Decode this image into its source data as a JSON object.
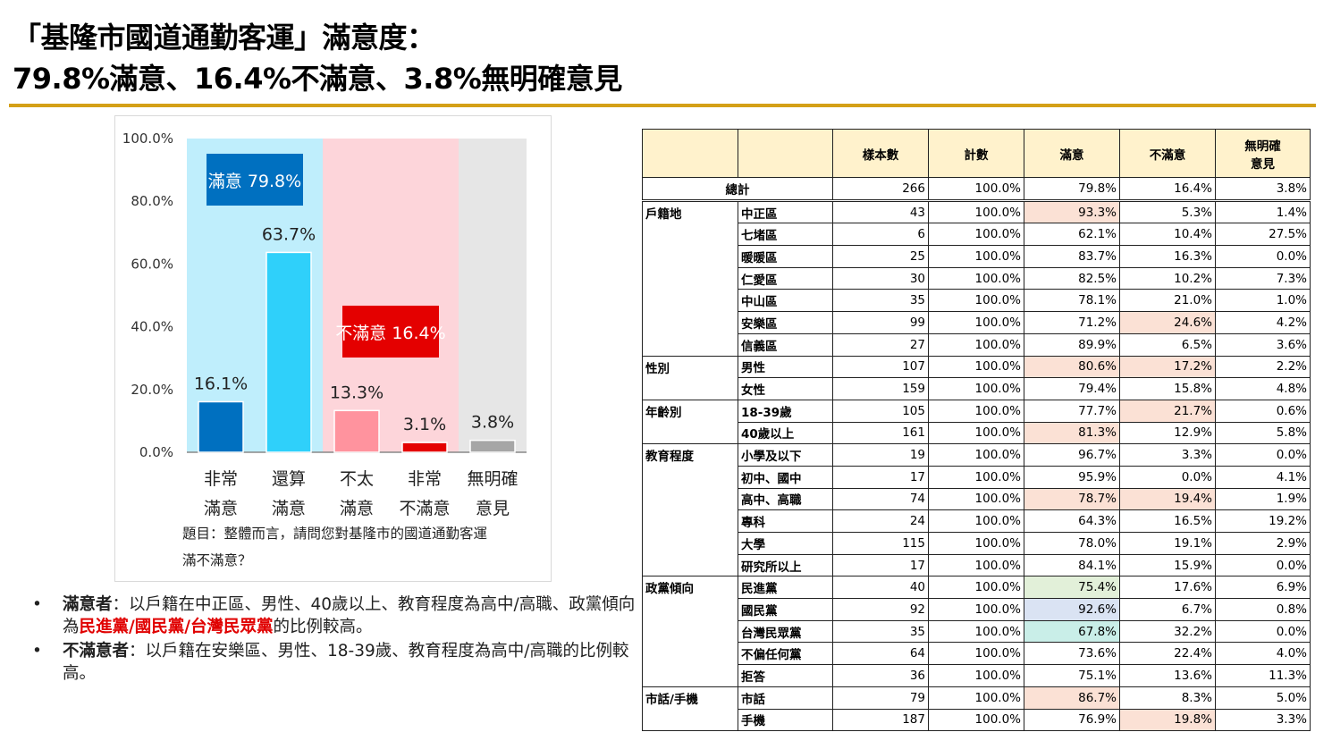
{
  "title": {
    "line1": "「基隆市國道通勤客運」滿意度：",
    "line2": "79.8%滿意、16.4%不滿意、3.8%無明確意見"
  },
  "colors": {
    "accent_rule": "#d4a017",
    "satisfied_bg": "#bfeefc",
    "unsatisfied_bg": "#fdd5da",
    "noopinion_bg": "#e6e6e6",
    "bar_very_satisfied": "#0070c0",
    "bar_satisfied": "#2fd0fa",
    "bar_unsatisfied": "#ff939e",
    "bar_very_unsatisfied": "#e40000",
    "bar_no_opinion": "#a6a6a6",
    "hl_orange": "#fbe1d5",
    "hl_green": "#e2f0d9",
    "hl_blue": "#dae3f3",
    "hl_teal": "#c9eee8"
  },
  "chart_data": {
    "type": "bar",
    "categories": [
      "非常\n滿意",
      "還算\n滿意",
      "不太\n滿意",
      "非常\n不滿意",
      "無明確\n意見"
    ],
    "values": [
      16.1,
      63.7,
      13.3,
      3.1,
      3.8
    ],
    "value_labels": [
      "16.1%",
      "63.7%",
      "13.3%",
      "3.1%",
      "3.8%"
    ],
    "yticks": [
      "100.0%",
      "80.0%",
      "60.0%",
      "40.0%",
      "20.0%",
      "0.0%"
    ],
    "ylim": [
      0,
      100
    ],
    "groups": [
      {
        "label": "滿意 79.8%",
        "from": 0,
        "to": 1
      },
      {
        "label": "不滿意 16.4%",
        "from": 2,
        "to": 3
      }
    ],
    "footnote": "題目：整體而言，請問您對基隆市的國道通勤客運\n滿不滿意？",
    "grid": false,
    "legend": "none"
  },
  "notes": [
    {
      "bullet": "•",
      "head": "滿意者",
      "text_pre": "：以戶籍在中正區、男性、40歲以上、教育程度為高中/高職、政黨傾向為",
      "text_red": "民進黨/國民黨/台灣民眾黨",
      "text_post": "的比例較高。"
    },
    {
      "bullet": "•",
      "head": "不滿意者",
      "text_pre": "：以戶籍在安樂區、男性、18-39歲、教育程度為高中/高職的比例較高。",
      "text_red": "",
      "text_post": ""
    }
  ],
  "table": {
    "headers": [
      "",
      "",
      "樣本數",
      "計數",
      "滿意",
      "不滿意",
      "無明確\n意見"
    ],
    "total": {
      "label": "總計",
      "values": [
        "266",
        "100.0%",
        "79.8%",
        "16.4%",
        "3.8%"
      ]
    },
    "groups": [
      {
        "name": "戶籍地",
        "rows": [
          {
            "label": "中正區",
            "values": [
              "43",
              "100.0%",
              "93.3%",
              "5.3%",
              "1.4%"
            ],
            "hl": [
              "",
              "",
              "orange",
              "",
              ""
            ]
          },
          {
            "label": "七堵區",
            "values": [
              "6",
              "100.0%",
              "62.1%",
              "10.4%",
              "27.5%"
            ],
            "hl": [
              "",
              "",
              "",
              "",
              ""
            ]
          },
          {
            "label": "暖暖區",
            "values": [
              "25",
              "100.0%",
              "83.7%",
              "16.3%",
              "0.0%"
            ],
            "hl": [
              "",
              "",
              "",
              "",
              ""
            ]
          },
          {
            "label": "仁愛區",
            "values": [
              "30",
              "100.0%",
              "82.5%",
              "10.2%",
              "7.3%"
            ],
            "hl": [
              "",
              "",
              "",
              "",
              ""
            ]
          },
          {
            "label": "中山區",
            "values": [
              "35",
              "100.0%",
              "78.1%",
              "21.0%",
              "1.0%"
            ],
            "hl": [
              "",
              "",
              "",
              "",
              ""
            ]
          },
          {
            "label": "安樂區",
            "values": [
              "99",
              "100.0%",
              "71.2%",
              "24.6%",
              "4.2%"
            ],
            "hl": [
              "",
              "",
              "",
              "orange",
              ""
            ]
          },
          {
            "label": "信義區",
            "values": [
              "27",
              "100.0%",
              "89.9%",
              "6.5%",
              "3.6%"
            ],
            "hl": [
              "",
              "",
              "",
              "",
              ""
            ]
          }
        ]
      },
      {
        "name": "性別",
        "rows": [
          {
            "label": "男性",
            "values": [
              "107",
              "100.0%",
              "80.6%",
              "17.2%",
              "2.2%"
            ],
            "hl": [
              "",
              "",
              "orange",
              "orange",
              ""
            ]
          },
          {
            "label": "女性",
            "values": [
              "159",
              "100.0%",
              "79.4%",
              "15.8%",
              "4.8%"
            ],
            "hl": [
              "",
              "",
              "",
              "",
              ""
            ]
          }
        ]
      },
      {
        "name": "年齡別",
        "rows": [
          {
            "label": "18-39歲",
            "values": [
              "105",
              "100.0%",
              "77.7%",
              "21.7%",
              "0.6%"
            ],
            "hl": [
              "",
              "",
              "",
              "orange",
              ""
            ]
          },
          {
            "label": "40歲以上",
            "values": [
              "161",
              "100.0%",
              "81.3%",
              "12.9%",
              "5.8%"
            ],
            "hl": [
              "",
              "",
              "orange",
              "",
              ""
            ]
          }
        ]
      },
      {
        "name": "教育程度",
        "rows": [
          {
            "label": "小學及以下",
            "values": [
              "19",
              "100.0%",
              "96.7%",
              "3.3%",
              "0.0%"
            ],
            "hl": [
              "",
              "",
              "",
              "",
              ""
            ]
          },
          {
            "label": "初中、國中",
            "values": [
              "17",
              "100.0%",
              "95.9%",
              "0.0%",
              "4.1%"
            ],
            "hl": [
              "",
              "",
              "",
              "",
              ""
            ]
          },
          {
            "label": "高中、高職",
            "values": [
              "74",
              "100.0%",
              "78.7%",
              "19.4%",
              "1.9%"
            ],
            "hl": [
              "",
              "",
              "orange",
              "orange",
              ""
            ]
          },
          {
            "label": "專科",
            "values": [
              "24",
              "100.0%",
              "64.3%",
              "16.5%",
              "19.2%"
            ],
            "hl": [
              "",
              "",
              "",
              "",
              ""
            ]
          },
          {
            "label": "大學",
            "values": [
              "115",
              "100.0%",
              "78.0%",
              "19.1%",
              "2.9%"
            ],
            "hl": [
              "",
              "",
              "",
              "",
              ""
            ]
          },
          {
            "label": "研究所以上",
            "values": [
              "17",
              "100.0%",
              "84.1%",
              "15.9%",
              "0.0%"
            ],
            "hl": [
              "",
              "",
              "",
              "",
              ""
            ]
          }
        ]
      },
      {
        "name": "政黨傾向",
        "rows": [
          {
            "label": "民進黨",
            "values": [
              "40",
              "100.0%",
              "75.4%",
              "17.6%",
              "6.9%"
            ],
            "hl": [
              "",
              "",
              "green",
              "",
              ""
            ]
          },
          {
            "label": "國民黨",
            "values": [
              "92",
              "100.0%",
              "92.6%",
              "6.7%",
              "0.8%"
            ],
            "hl": [
              "",
              "",
              "blue",
              "",
              ""
            ]
          },
          {
            "label": "台灣民眾黨",
            "values": [
              "35",
              "100.0%",
              "67.8%",
              "32.2%",
              "0.0%"
            ],
            "hl": [
              "",
              "",
              "teal",
              "",
              ""
            ]
          },
          {
            "label": "不偏任何黨",
            "values": [
              "64",
              "100.0%",
              "73.6%",
              "22.4%",
              "4.0%"
            ],
            "hl": [
              "",
              "",
              "",
              "",
              ""
            ]
          },
          {
            "label": "拒答",
            "values": [
              "36",
              "100.0%",
              "75.1%",
              "13.6%",
              "11.3%"
            ],
            "hl": [
              "",
              "",
              "",
              "",
              ""
            ]
          }
        ]
      },
      {
        "name": "市話/手機",
        "rows": [
          {
            "label": "市話",
            "values": [
              "79",
              "100.0%",
              "86.7%",
              "8.3%",
              "5.0%"
            ],
            "hl": [
              "",
              "",
              "orange",
              "",
              ""
            ]
          },
          {
            "label": "手機",
            "values": [
              "187",
              "100.0%",
              "76.9%",
              "19.8%",
              "3.3%"
            ],
            "hl": [
              "",
              "",
              "",
              "orange",
              ""
            ]
          }
        ]
      }
    ]
  }
}
